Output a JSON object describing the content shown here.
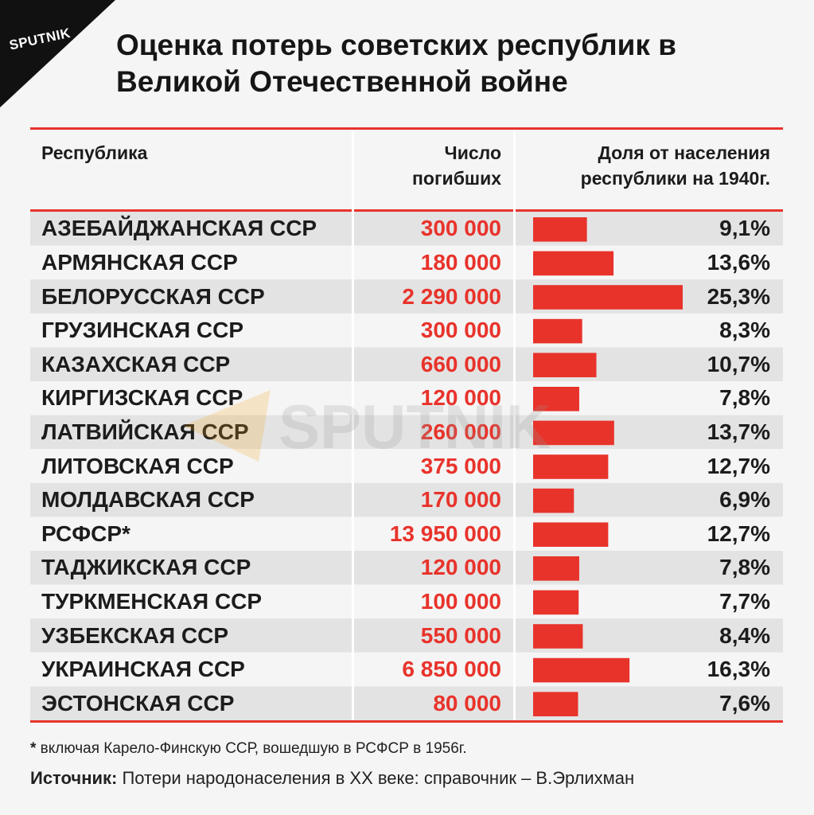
{
  "brand": {
    "logo_text": "SPUTNIK",
    "watermark_text": "SPUTNIK"
  },
  "title": "Оценка потерь советских республик в Великой Отечественной войне",
  "colors": {
    "accent": "#e8332b",
    "zebra": "#e3e3e3",
    "row": "#f5f5f5",
    "rule": "#e8332b"
  },
  "chart_data": {
    "type": "table",
    "headers": {
      "republic": "Республика",
      "deaths": "Число погибших",
      "share": "Доля от населения республики на 1940г."
    },
    "rows": [
      {
        "name": "АЗЕБАЙДЖАНСКАЯ ССР",
        "deaths": "300 000",
        "share_label": "9,1%",
        "share": 9.1
      },
      {
        "name": "АРМЯНСКАЯ ССР",
        "deaths": "180 000",
        "share_label": "13,6%",
        "share": 13.6
      },
      {
        "name": "БЕЛОРУССКАЯ ССР",
        "deaths": "2 290 000",
        "share_label": "25,3%",
        "share": 25.3
      },
      {
        "name": "ГРУЗИНСКАЯ ССР",
        "deaths": "300 000",
        "share_label": "8,3%",
        "share": 8.3
      },
      {
        "name": "КАЗАХСКАЯ ССР",
        "deaths": "660 000",
        "share_label": "10,7%",
        "share": 10.7
      },
      {
        "name": "КИРГИЗСКАЯ ССР",
        "deaths": "120 000",
        "share_label": "7,8%",
        "share": 7.8
      },
      {
        "name": "ЛАТВИЙСКАЯ ССР",
        "deaths": "260 000",
        "share_label": "13,7%",
        "share": 13.7
      },
      {
        "name": "ЛИТОВСКАЯ ССР",
        "deaths": "375 000",
        "share_label": "12,7%",
        "share": 12.7
      },
      {
        "name": "МОЛДАВСКАЯ ССР",
        "deaths": "170 000",
        "share_label": "6,9%",
        "share": 6.9
      },
      {
        "name": "РСФСР*",
        "deaths": "13 950 000",
        "share_label": "12,7%",
        "share": 12.7
      },
      {
        "name": "ТАДЖИКСКАЯ ССР",
        "deaths": "120 000",
        "share_label": "7,8%",
        "share": 7.8
      },
      {
        "name": "ТУРКМЕНСКАЯ ССР",
        "deaths": "100 000",
        "share_label": "7,7%",
        "share": 7.7
      },
      {
        "name": "УЗБЕКСКАЯ ССР",
        "deaths": "550 000",
        "share_label": "8,4%",
        "share": 8.4
      },
      {
        "name": "УКРАИНСКАЯ ССР",
        "deaths": "6 850 000",
        "share_label": "16,3%",
        "share": 16.3
      },
      {
        "name": "ЭСТОНСКАЯ ССР",
        "deaths": "80 000",
        "share_label": "7,6%",
        "share": 7.6
      }
    ],
    "share_max": 25.3
  },
  "footnote": {
    "marker": "*",
    "text": " включая Карело-Финскую ССР, вошедшую в РСФСР в 1956г."
  },
  "source": {
    "label": "Источник:",
    "text": " Потери народонаселения в XX веке: справочник – В.Эрлихман"
  }
}
